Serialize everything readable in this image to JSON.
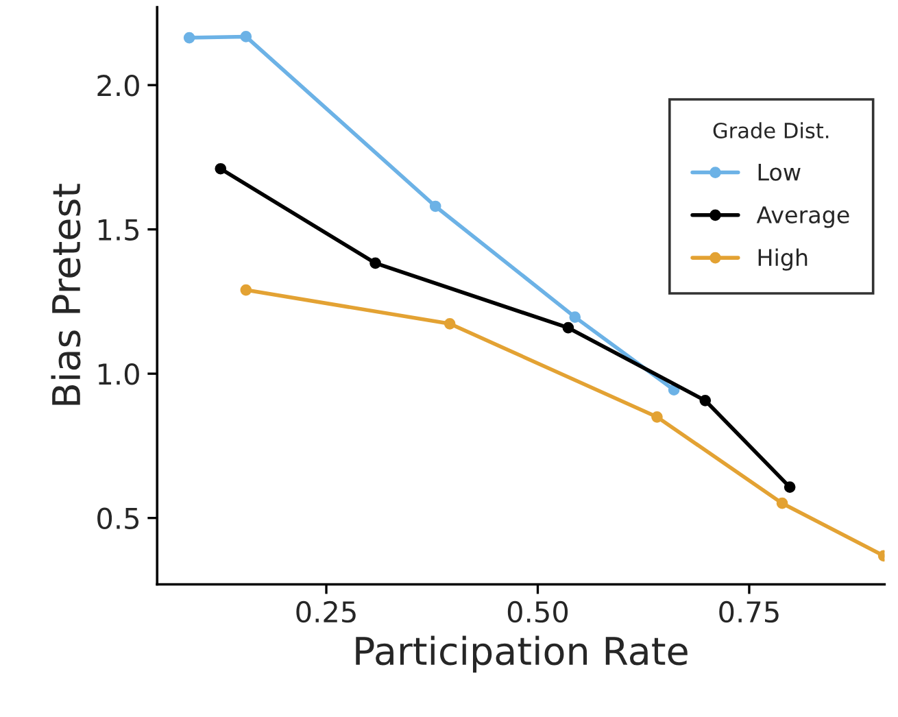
{
  "chart_data": {
    "type": "line",
    "xlabel": "Participation Rate",
    "ylabel": "Bias Pretest",
    "legend_title": "Grade Dist.",
    "xlim": [
      0.05,
      0.91
    ],
    "ylim": [
      0.27,
      2.27
    ],
    "xticks": [
      {
        "value": 0.25,
        "label": "0.25"
      },
      {
        "value": 0.5,
        "label": "0.50"
      },
      {
        "value": 0.75,
        "label": "0.75"
      }
    ],
    "yticks": [
      {
        "value": 0.5,
        "label": "0.5"
      },
      {
        "value": 1.0,
        "label": "1.0"
      },
      {
        "value": 1.5,
        "label": "1.5"
      },
      {
        "value": 2.0,
        "label": "2.0"
      }
    ],
    "grid": false,
    "legend": "top right",
    "marker": "circle",
    "line_style": "solid",
    "series": [
      {
        "name": "Low",
        "color": "#6cb2e6",
        "x": [
          0.088,
          0.155,
          0.379,
          0.544,
          0.661
        ],
        "values": [
          2.164,
          2.168,
          1.58,
          1.196,
          0.944
        ]
      },
      {
        "name": "Average",
        "color": "#000000",
        "x": [
          0.125,
          0.308,
          0.536,
          0.698,
          0.798
        ],
        "values": [
          1.71,
          1.383,
          1.159,
          0.907,
          0.607
        ]
      },
      {
        "name": "High",
        "color": "#e3a233",
        "x": [
          0.155,
          0.396,
          0.641,
          0.789,
          0.909
        ],
        "values": [
          1.29,
          1.173,
          0.85,
          0.551,
          0.369
        ]
      }
    ]
  }
}
